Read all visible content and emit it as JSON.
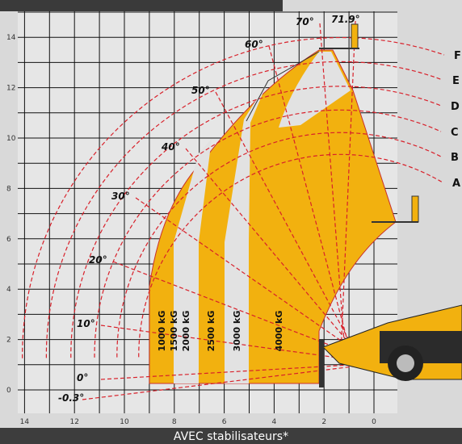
{
  "x_axis": {
    "ticks": [
      "14",
      "12",
      "10",
      "8",
      "6",
      "4",
      "2",
      "0"
    ]
  },
  "y_axis": {
    "ticks": [
      "14",
      "12",
      "10",
      "8",
      "6",
      "4",
      "2",
      "0"
    ]
  },
  "angles": [
    "-0.3°",
    "0°",
    "10°",
    "20°",
    "30°",
    "40°",
    "50°",
    "60°",
    "70°",
    "71.9°"
  ],
  "loads": [
    "1000 kG",
    "1500 kG",
    "2000 kG",
    "2500 kG",
    "3000 kG",
    "4000 kG"
  ],
  "curves": [
    "F",
    "E",
    "D",
    "C",
    "B",
    "A"
  ],
  "footer": "AVEC stabilisateurs*"
}
